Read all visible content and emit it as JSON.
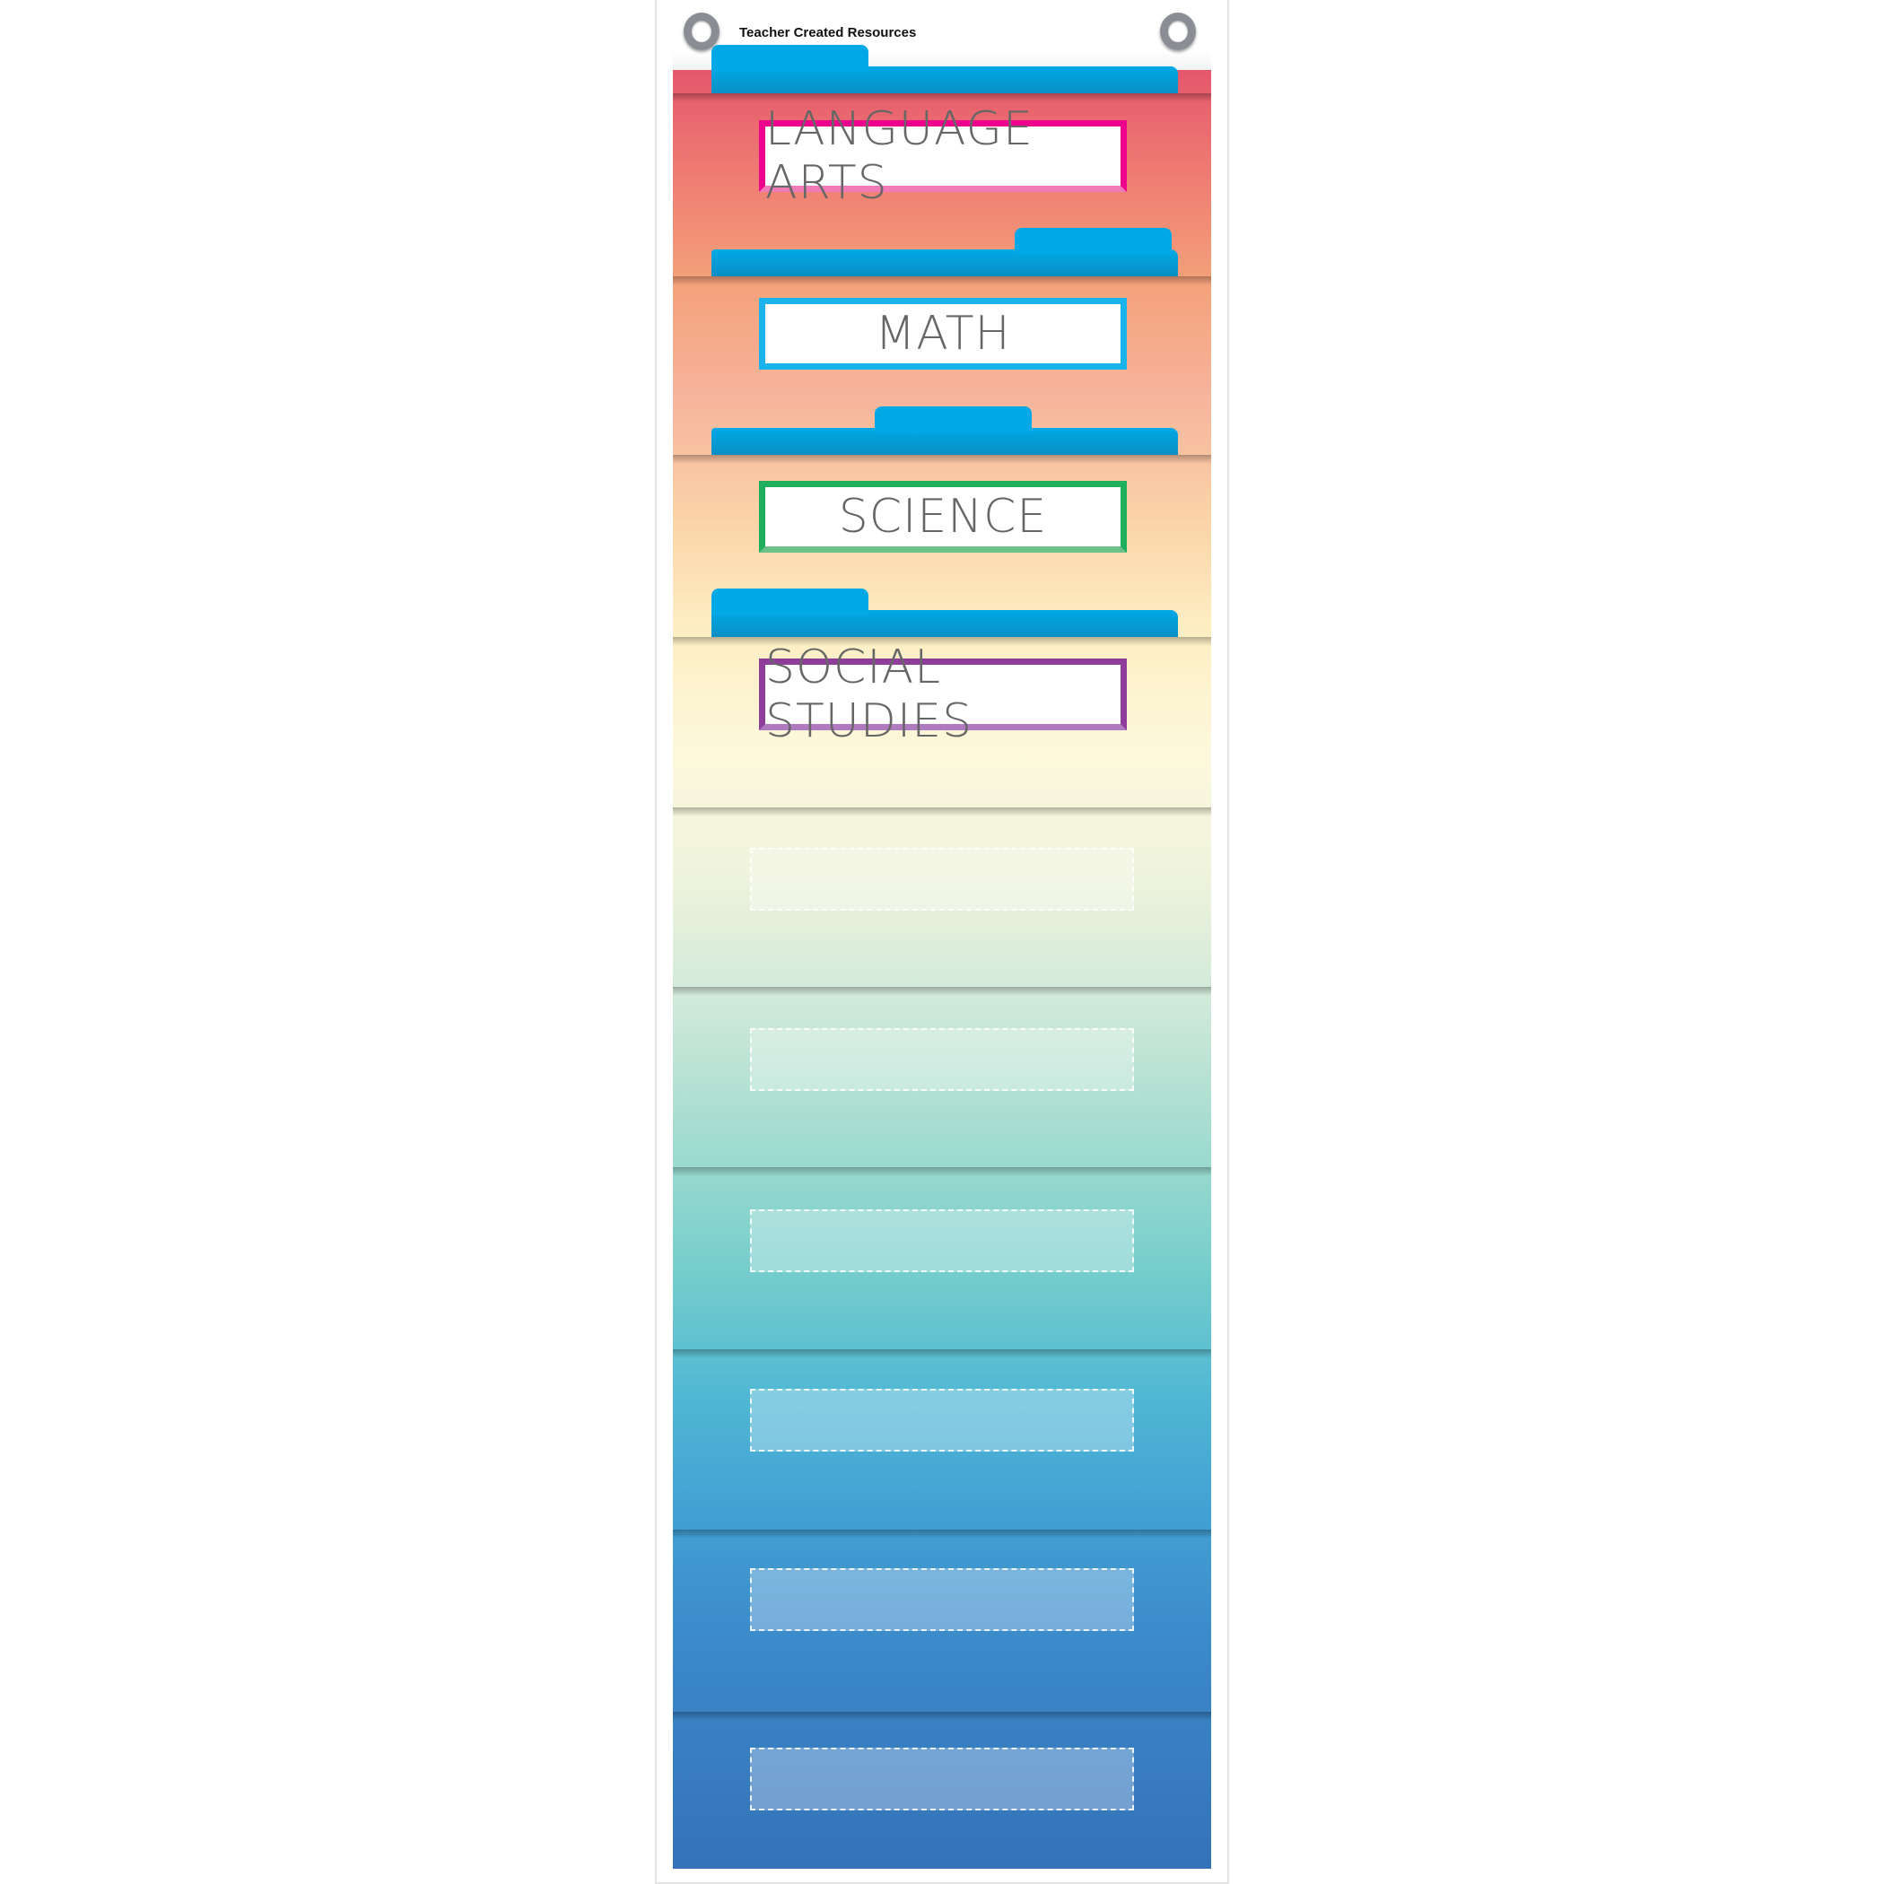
{
  "brand": "Teacher Created Resources",
  "pockets": [
    {
      "label": "LANGUAGE ARTS",
      "border_color": "#ec008c"
    },
    {
      "label": "MATH",
      "border_color": "#1ab3ec"
    },
    {
      "label": "SCIENCE",
      "border_color": "#1fae5b"
    },
    {
      "label": "SOCIAL STUDIES",
      "border_color": "#8e3d9a"
    }
  ],
  "empty_pocket_count": 6,
  "folder_color": "#00a9e6"
}
